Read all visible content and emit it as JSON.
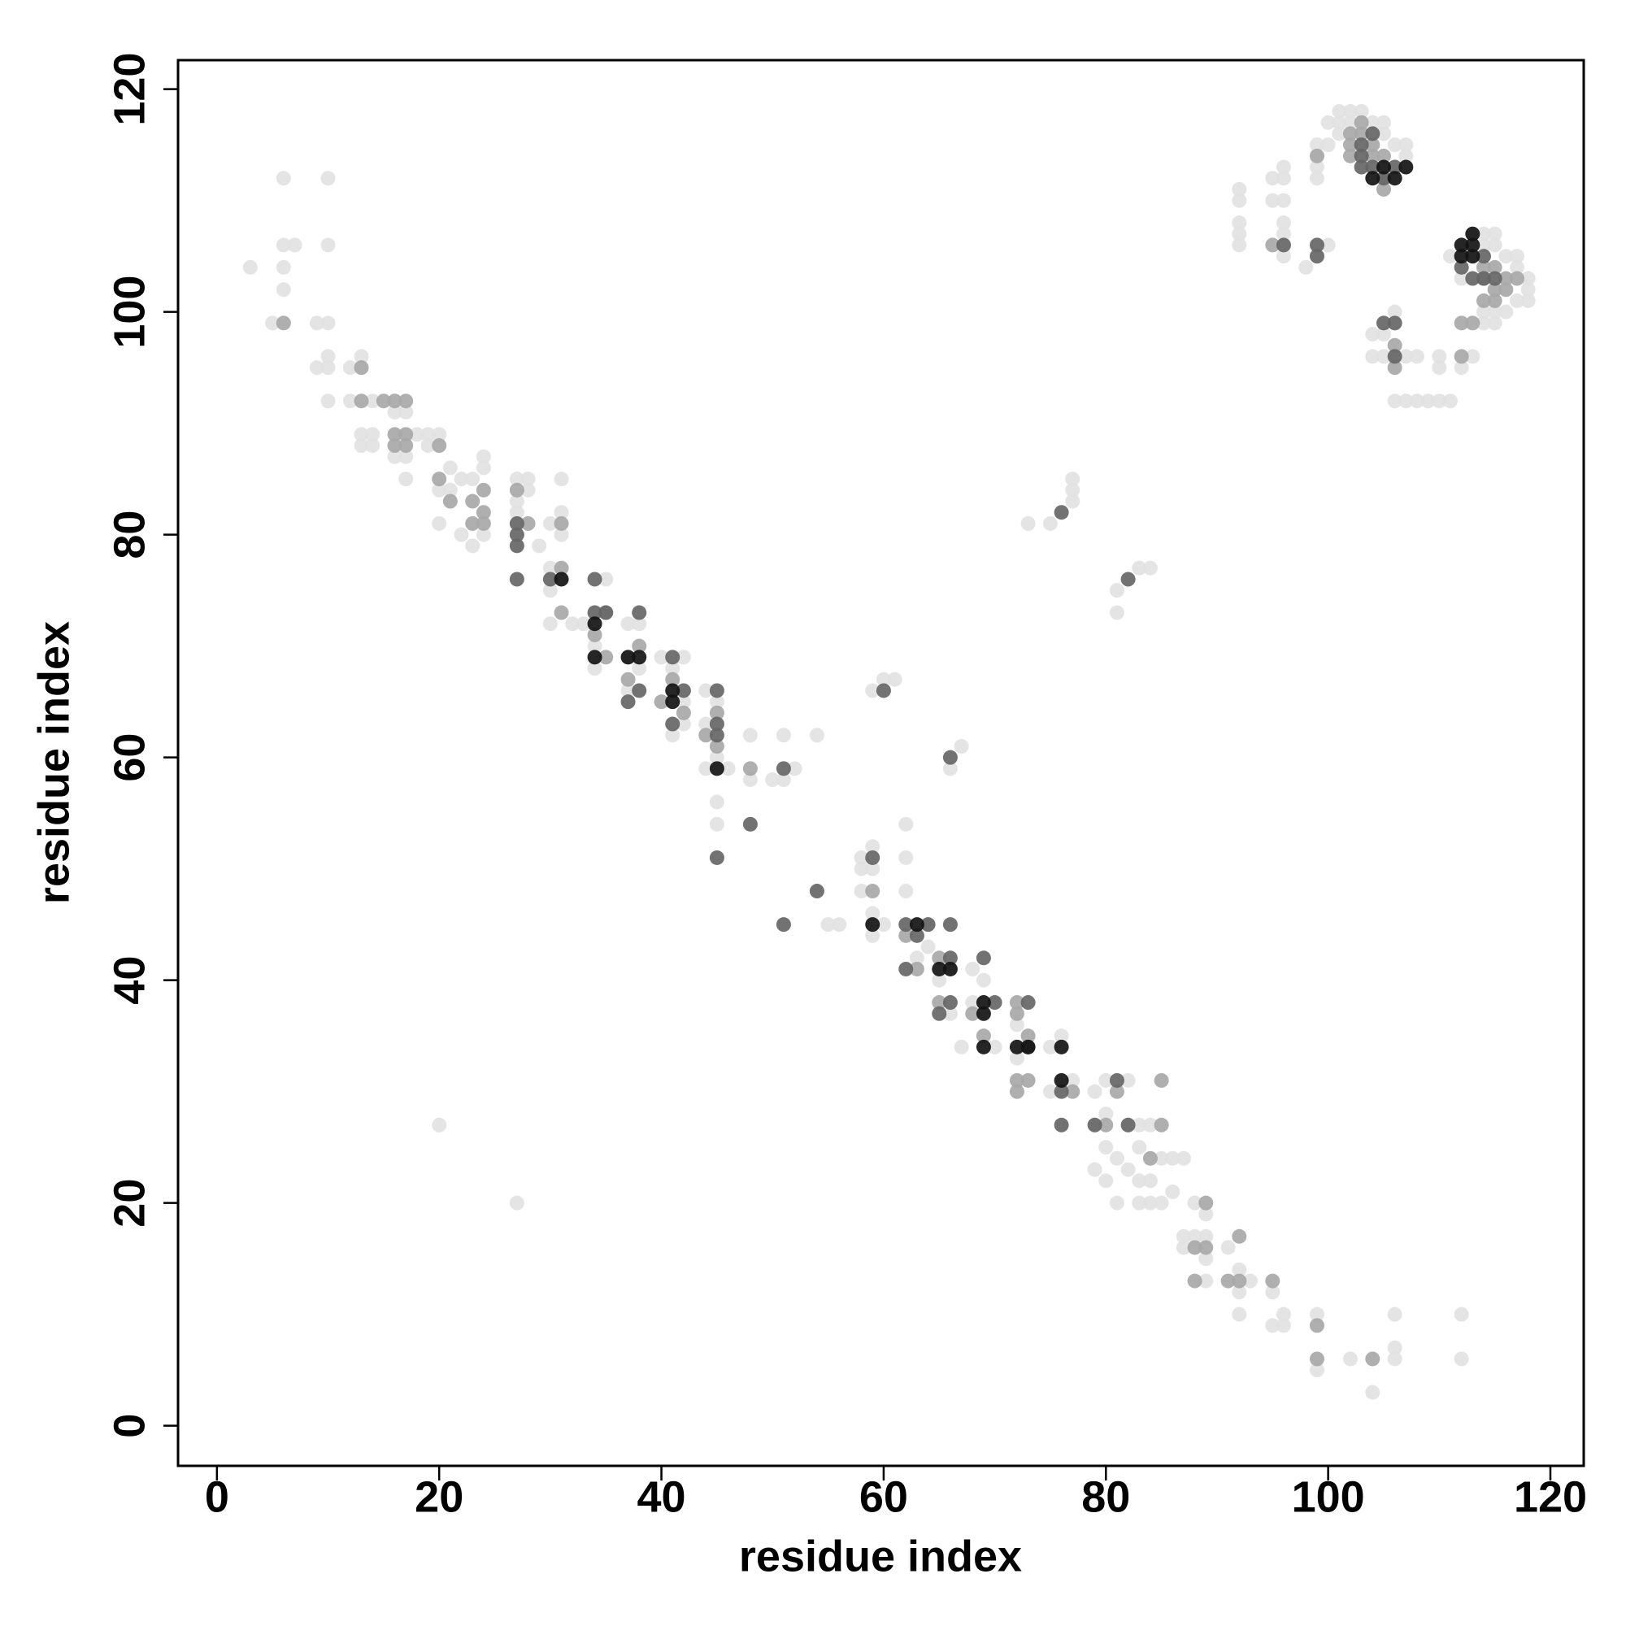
{
  "chart_data": {
    "type": "scatter",
    "xlabel": "residue index",
    "ylabel": "residue index",
    "xlim": [
      -3.5,
      123
    ],
    "ylim": [
      -3.6,
      122.6
    ],
    "xticks": [
      0,
      20,
      40,
      60,
      80,
      100,
      120
    ],
    "yticks": [
      0,
      20,
      40,
      60,
      80,
      100,
      120
    ],
    "series": [
      {
        "color": "#e2e2e2",
        "x": [
          3,
          6,
          10,
          6,
          7,
          10,
          6,
          6,
          5,
          10,
          9,
          9,
          10,
          10,
          10,
          12,
          12,
          13,
          14,
          13,
          14,
          13,
          14,
          16,
          17,
          16,
          17,
          17,
          18,
          19,
          20,
          19,
          21,
          20,
          21,
          22,
          23,
          24,
          24,
          20,
          22,
          23,
          24,
          27,
          28,
          28,
          27,
          27,
          29,
          30,
          31,
          31,
          31,
          30,
          30,
          30,
          32,
          33,
          34,
          34,
          35,
          37,
          38,
          37,
          37,
          38,
          40,
          41,
          42,
          42,
          41,
          44,
          45,
          44,
          42,
          44,
          45,
          46,
          45,
          45,
          48,
          48,
          50,
          51,
          51,
          52,
          54,
          20,
          27,
          55,
          56
        ],
        "y": [
          104,
          112,
          112,
          106,
          106,
          106,
          104,
          102,
          99,
          99,
          99,
          95,
          96,
          95,
          92,
          95,
          92,
          96,
          92,
          89,
          89,
          88,
          88,
          91,
          91,
          87,
          85,
          87,
          89,
          89,
          89,
          88,
          86,
          84,
          84,
          85,
          85,
          87,
          86,
          81,
          80,
          79,
          80,
          85,
          85,
          84,
          83,
          82,
          79,
          81,
          85,
          82,
          80,
          77,
          75,
          72,
          72,
          72,
          70,
          68,
          76,
          72,
          72,
          69,
          66,
          68,
          69,
          68,
          69,
          65,
          62,
          66,
          65,
          63,
          63,
          59,
          60,
          59,
          56,
          54,
          62,
          58,
          58,
          62,
          58,
          59,
          62,
          27,
          20,
          45,
          45
        ]
      },
      {
        "color": "#e2e2e2",
        "x": [
          58,
          59,
          58,
          59,
          58,
          59,
          59,
          60,
          62,
          62,
          62,
          60,
          61,
          59,
          66,
          67,
          64,
          63,
          64,
          65,
          66,
          66,
          68,
          68,
          69,
          67,
          70,
          72,
          72,
          75,
          75,
          76,
          77,
          79,
          79,
          80,
          80,
          80,
          79,
          80,
          81,
          81,
          82,
          82,
          82,
          83,
          83,
          83,
          83,
          84,
          84,
          84,
          85,
          85,
          86,
          86,
          87,
          87,
          88,
          88,
          89,
          89,
          89,
          89,
          87,
          91,
          92,
          92,
          92,
          93,
          95,
          95,
          96,
          96,
          99,
          99,
          102,
          104,
          106,
          106,
          106,
          112,
          112,
          81,
          81,
          83,
          84,
          73,
          75,
          77,
          77,
          77
        ],
        "y": [
          51,
          52,
          50,
          50,
          48,
          46,
          44,
          45,
          51,
          48,
          54,
          67,
          67,
          66,
          59,
          61,
          45,
          42,
          43,
          40,
          41,
          37,
          41,
          38,
          40,
          34,
          34,
          36,
          33,
          34,
          30,
          35,
          31,
          30,
          27,
          31,
          28,
          25,
          23,
          22,
          24,
          20,
          23,
          27,
          31,
          27,
          25,
          22,
          20,
          27,
          22,
          20,
          24,
          20,
          24,
          21,
          24,
          17,
          17,
          20,
          19,
          17,
          15,
          13,
          16,
          16,
          14,
          12,
          10,
          13,
          12,
          9,
          10,
          9,
          10,
          5,
          6,
          3,
          10,
          7,
          6,
          10,
          6,
          73,
          75,
          77,
          77,
          81,
          81,
          85,
          84,
          83
        ]
      },
      {
        "color": "#e2e2e2",
        "x": [
          92,
          92,
          92,
          92,
          92,
          95,
          95,
          96,
          96,
          96,
          96,
          96,
          96,
          98,
          99,
          99,
          99,
          99,
          100,
          100,
          100,
          101,
          101,
          102,
          101,
          102,
          103,
          104,
          105,
          105,
          106,
          107,
          107,
          104,
          104,
          105,
          106,
          106,
          107,
          108,
          106,
          107,
          108,
          109,
          110,
          111,
          110,
          110,
          112,
          112,
          111,
          113,
          114,
          115,
          114,
          115,
          116,
          117,
          117,
          118,
          118,
          118,
          117,
          116,
          115,
          114,
          114,
          115,
          105,
          113
        ],
        "y": [
          111,
          110,
          108,
          107,
          106,
          110,
          112,
          113,
          112,
          110,
          108,
          107,
          105,
          104,
          113,
          112,
          115,
          114,
          115,
          106,
          117,
          117,
          118,
          118,
          116,
          117,
          118,
          117,
          117,
          116,
          115,
          115,
          114,
          98,
          96,
          96,
          96,
          100,
          96,
          96,
          92,
          92,
          92,
          92,
          92,
          92,
          96,
          95,
          95,
          103,
          105,
          107,
          107,
          107,
          106,
          106,
          105,
          105,
          104,
          103,
          102,
          101,
          101,
          100,
          100,
          100,
          99,
          99,
          98,
          96
        ]
      },
      {
        "color": "#a8a8a8",
        "x": [
          6,
          13,
          13,
          15,
          16,
          17,
          16,
          17,
          16,
          17,
          20,
          20,
          21,
          23,
          24,
          24,
          24,
          23,
          27,
          28,
          31,
          31,
          31,
          34,
          35,
          35,
          37,
          38,
          40,
          41,
          42,
          44,
          45,
          45,
          48,
          59,
          62,
          63,
          65,
          65,
          68,
          69,
          72,
          72,
          72,
          72,
          73,
          77,
          80,
          81,
          84,
          85,
          85,
          88,
          88,
          89,
          89,
          91,
          92,
          92,
          95,
          99,
          99,
          104,
          73,
          95,
          99,
          102,
          102,
          103,
          104,
          104,
          105,
          105,
          105,
          106,
          106,
          112,
          113,
          114,
          114,
          115,
          116,
          116,
          117,
          115,
          114,
          112,
          115,
          102,
          103
        ],
        "y": [
          99,
          95,
          92,
          92,
          92,
          92,
          89,
          89,
          88,
          88,
          88,
          85,
          83,
          83,
          84,
          82,
          81,
          81,
          84,
          81,
          81,
          77,
          73,
          71,
          73,
          69,
          67,
          70,
          65,
          67,
          64,
          62,
          64,
          61,
          59,
          48,
          44,
          41,
          42,
          38,
          37,
          35,
          38,
          37,
          31,
          30,
          35,
          30,
          27,
          30,
          24,
          27,
          31,
          16,
          13,
          20,
          16,
          13,
          17,
          13,
          13,
          9,
          6,
          6,
          31,
          106,
          114,
          115,
          114,
          116,
          115,
          114,
          114,
          112,
          111,
          97,
          95,
          99,
          99,
          103,
          104,
          104,
          103,
          102,
          103,
          102,
          101,
          96,
          101,
          116,
          117
        ]
      },
      {
        "color": "#666666",
        "x": [
          27,
          27,
          27,
          27,
          30,
          34,
          34,
          35,
          38,
          37,
          38,
          41,
          42,
          41,
          45,
          45,
          45,
          45,
          48,
          51,
          51,
          54,
          59,
          60,
          62,
          63,
          64,
          65,
          66,
          66,
          66,
          69,
          70,
          73,
          73,
          76,
          76,
          79,
          81,
          82,
          76,
          82,
          66,
          62,
          96,
          99,
          99,
          103,
          103,
          104,
          105,
          106,
          105,
          106,
          106,
          112,
          114,
          114,
          115,
          113,
          104,
          103
        ],
        "y": [
          81,
          80,
          79,
          76,
          76,
          76,
          73,
          73,
          73,
          65,
          66,
          69,
          66,
          63,
          66,
          63,
          62,
          51,
          54,
          59,
          45,
          48,
          51,
          66,
          45,
          44,
          45,
          37,
          45,
          42,
          38,
          42,
          38,
          38,
          34,
          30,
          27,
          27,
          31,
          27,
          82,
          76,
          60,
          41,
          106,
          106,
          105,
          114,
          113,
          113,
          112,
          113,
          99,
          99,
          96,
          104,
          105,
          103,
          103,
          103,
          116,
          115
        ]
      },
      {
        "color": "#141414",
        "x": [
          31,
          34,
          34,
          37,
          38,
          41,
          41,
          45,
          59,
          63,
          65,
          66,
          69,
          69,
          69,
          72,
          73,
          76,
          76,
          104,
          105,
          106,
          107,
          112,
          113,
          113,
          112,
          113
        ],
        "y": [
          76,
          72,
          69,
          69,
          69,
          65,
          66,
          59,
          45,
          45,
          41,
          41,
          38,
          37,
          34,
          34,
          34,
          34,
          31,
          112,
          113,
          112,
          113,
          106,
          107,
          106,
          105,
          105
        ]
      }
    ]
  }
}
